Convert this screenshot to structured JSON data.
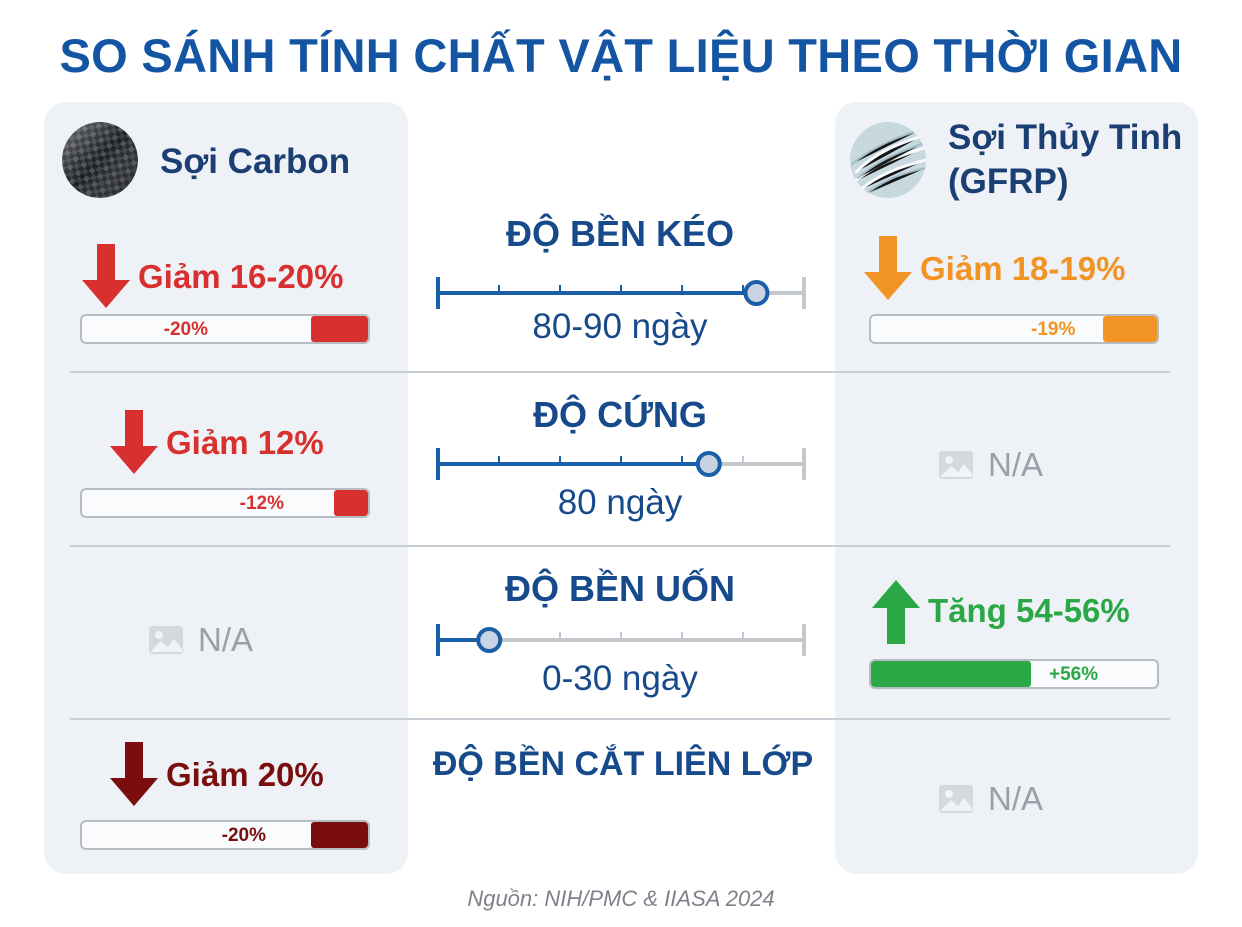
{
  "title": "SO SÁNH TÍNH CHẤT VẬT LIỆU THEO THỜI GIAN",
  "materials": {
    "left": {
      "name": "Sợi Carbon",
      "icon": "carbon-fiber-icon"
    },
    "right": {
      "name_line1": "Sợi Thủy Tinh",
      "name_line2": "(GFRP)",
      "icon": "glass-fiber-icon"
    }
  },
  "colors": {
    "title": "#1455a3",
    "timeline": "#1b5fa8",
    "red": "#d8302e",
    "dark_red": "#7a0e0e",
    "orange": "#f29423",
    "green": "#2aa845",
    "na": "#9aa0a8"
  },
  "chart_data": {
    "type": "table",
    "properties": [
      {
        "name": "ĐỘ BỀN KÉO",
        "timeline_label": "80-90 ngày",
        "timeline_fraction": 0.87,
        "carbon": {
          "text": "Giảm 16-20%",
          "bar_label": "-20%",
          "value": -20,
          "direction": "down",
          "color": "#d8302e"
        },
        "gfrp": {
          "text": "Giảm 18-19%",
          "bar_label": "-19%",
          "value": -19,
          "direction": "down",
          "color": "#f29423"
        }
      },
      {
        "name": "ĐỘ CỨNG",
        "timeline_label": "80 ngày",
        "timeline_fraction": 0.74,
        "carbon": {
          "text": "Giảm 12%",
          "bar_label": "-12%",
          "value": -12,
          "direction": "down",
          "color": "#d8302e"
        },
        "gfrp": {
          "na": "N/A"
        }
      },
      {
        "name": "ĐỘ BỀN UỐN",
        "timeline_label": "0-30 ngày",
        "timeline_fraction": 0.14,
        "carbon": {
          "na": "N/A"
        },
        "gfrp": {
          "text": "Tăng 54-56%",
          "bar_label": "+56%",
          "value": 56,
          "direction": "up",
          "color": "#2aa845"
        }
      },
      {
        "name": "ĐỘ BỀN CẮT LIÊN LỚP",
        "timeline_label": "",
        "carbon": {
          "text": "Giảm 20%",
          "bar_label": "-20%",
          "value": -20,
          "direction": "down",
          "color": "#7a0e0e"
        },
        "gfrp": {
          "na": "N/A"
        }
      }
    ]
  },
  "source": "Nguồn: NIH/PMC & IIASA 2024"
}
